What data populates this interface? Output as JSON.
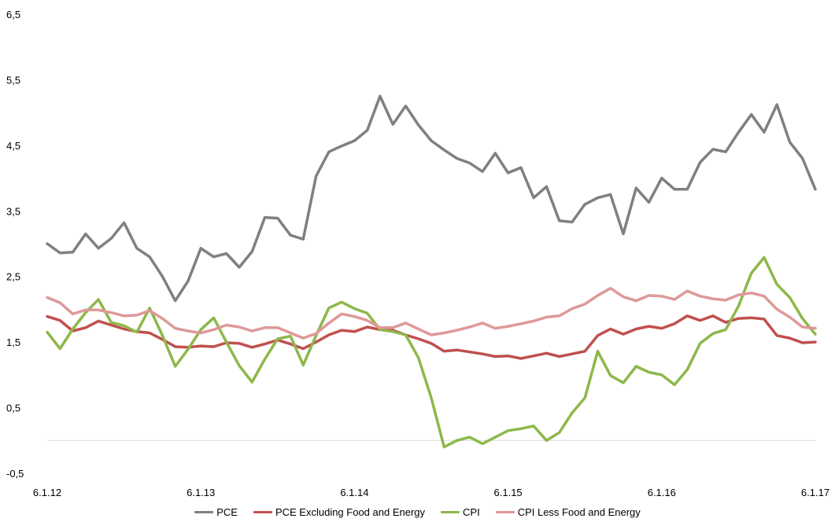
{
  "chart_data": {
    "type": "line",
    "title": "",
    "xlabel": "",
    "ylabel": "",
    "ylim": [
      -0.5,
      6.5
    ],
    "y_ticks": [
      "6,5",
      "5,5",
      "4,5",
      "3,5",
      "2,5",
      "1,5",
      "0,5",
      "-0,5"
    ],
    "y_tick_values": [
      6.5,
      5.5,
      4.5,
      3.5,
      2.5,
      1.5,
      0.5,
      -0.5
    ],
    "x_ticks": [
      "6.1.12",
      "6.1.13",
      "6.1.14",
      "6.1.15",
      "6.1.16",
      "6.1.17"
    ],
    "x_range": [
      "2012-06",
      "2017-06"
    ],
    "x": [
      "2012-06",
      "2012-07",
      "2012-08",
      "2012-09",
      "2012-10",
      "2012-11",
      "2012-12",
      "2013-01",
      "2013-02",
      "2013-03",
      "2013-04",
      "2013-05",
      "2013-06",
      "2013-07",
      "2013-08",
      "2013-09",
      "2013-10",
      "2013-11",
      "2013-12",
      "2014-01",
      "2014-02",
      "2014-03",
      "2014-04",
      "2014-05",
      "2014-06",
      "2014-07",
      "2014-08",
      "2014-09",
      "2014-10",
      "2014-11",
      "2014-12",
      "2015-01",
      "2015-02",
      "2015-03",
      "2015-04",
      "2015-05",
      "2015-06",
      "2015-07",
      "2015-08",
      "2015-09",
      "2015-10",
      "2015-11",
      "2015-12",
      "2016-01",
      "2016-02",
      "2016-03",
      "2016-04",
      "2016-05",
      "2016-06",
      "2016-07",
      "2016-08",
      "2016-09",
      "2016-10",
      "2016-11",
      "2016-12",
      "2017-01",
      "2017-02",
      "2017-03",
      "2017-04",
      "2017-05",
      "2017-06"
    ],
    "grid": false,
    "zero_line": true,
    "legend_position": "bottom",
    "series": [
      {
        "name": "PCE",
        "color": "#808080",
        "values": [
          3.0,
          2.86,
          2.87,
          3.15,
          2.93,
          3.08,
          3.32,
          2.93,
          2.8,
          2.5,
          2.13,
          2.43,
          2.93,
          2.8,
          2.85,
          2.64,
          2.88,
          3.4,
          3.39,
          3.13,
          3.07,
          4.03,
          4.4,
          4.49,
          4.57,
          4.73,
          5.25,
          4.82,
          5.1,
          4.81,
          4.57,
          4.43,
          4.3,
          4.23,
          4.1,
          4.38,
          4.08,
          4.16,
          3.7,
          3.87,
          3.35,
          3.33,
          3.6,
          3.7,
          3.75,
          3.15,
          3.85,
          3.63,
          4.0,
          3.83,
          3.83,
          4.24,
          4.44,
          4.4,
          4.7,
          4.97,
          4.7,
          5.12,
          4.55,
          4.3,
          3.83
        ]
      },
      {
        "name": "PCE Excluding Food and Energy",
        "color": "#c0504d",
        "values": [
          1.89,
          1.83,
          1.67,
          1.72,
          1.82,
          1.76,
          1.7,
          1.66,
          1.64,
          1.54,
          1.43,
          1.42,
          1.44,
          1.43,
          1.49,
          1.48,
          1.42,
          1.47,
          1.53,
          1.47,
          1.4,
          1.5,
          1.61,
          1.68,
          1.66,
          1.73,
          1.69,
          1.68,
          1.61,
          1.55,
          1.48,
          1.36,
          1.38,
          1.35,
          1.32,
          1.28,
          1.29,
          1.25,
          1.29,
          1.33,
          1.28,
          1.32,
          1.36,
          1.6,
          1.7,
          1.62,
          1.7,
          1.74,
          1.71,
          1.78,
          1.9,
          1.83,
          1.9,
          1.8,
          1.86,
          1.87,
          1.85,
          1.6,
          1.56,
          1.49,
          1.5
        ]
      },
      {
        "name": "CPI",
        "color": "#8db84a",
        "values": [
          1.65,
          1.4,
          1.7,
          1.95,
          2.15,
          1.8,
          1.75,
          1.65,
          2.02,
          1.6,
          1.13,
          1.39,
          1.69,
          1.87,
          1.5,
          1.14,
          0.89,
          1.24,
          1.55,
          1.59,
          1.15,
          1.6,
          2.02,
          2.11,
          2.01,
          1.94,
          1.69,
          1.66,
          1.61,
          1.26,
          0.65,
          -0.1,
          0.0,
          0.05,
          -0.05,
          0.05,
          0.15,
          0.18,
          0.22,
          0.0,
          0.12,
          0.42,
          0.65,
          1.36,
          0.99,
          0.88,
          1.13,
          1.04,
          1.0,
          0.85,
          1.08,
          1.48,
          1.63,
          1.69,
          2.05,
          2.55,
          2.79,
          2.38,
          2.18,
          1.86,
          1.62
        ]
      },
      {
        "name": "CPI Less Food and Energy",
        "color": "#de9999",
        "values": [
          2.18,
          2.1,
          1.93,
          1.99,
          1.99,
          1.95,
          1.9,
          1.91,
          1.98,
          1.86,
          1.71,
          1.67,
          1.64,
          1.69,
          1.76,
          1.73,
          1.67,
          1.72,
          1.72,
          1.64,
          1.56,
          1.63,
          1.79,
          1.93,
          1.89,
          1.83,
          1.72,
          1.72,
          1.79,
          1.7,
          1.61,
          1.64,
          1.68,
          1.73,
          1.79,
          1.71,
          1.74,
          1.78,
          1.82,
          1.88,
          1.9,
          2.01,
          2.08,
          2.21,
          2.32,
          2.19,
          2.13,
          2.21,
          2.2,
          2.15,
          2.28,
          2.2,
          2.16,
          2.14,
          2.22,
          2.25,
          2.2,
          2.0,
          1.88,
          1.73,
          1.71
        ]
      }
    ]
  }
}
